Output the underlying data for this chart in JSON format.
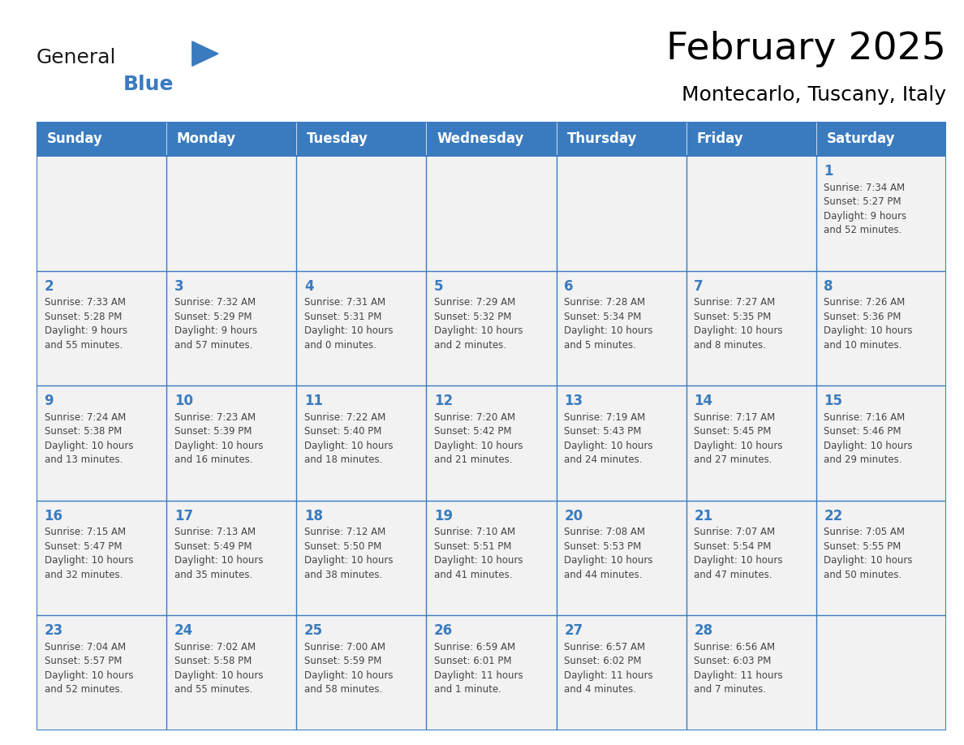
{
  "title": "February 2025",
  "subtitle": "Montecarlo, Tuscany, Italy",
  "header_bg_color": "#3A7BBF",
  "header_text_color": "#FFFFFF",
  "cell_bg_color": "#F2F2F2",
  "border_color": "#3A7BBF",
  "day_number_color": "#3A7BBF",
  "text_color": "#444444",
  "days_of_week": [
    "Sunday",
    "Monday",
    "Tuesday",
    "Wednesday",
    "Thursday",
    "Friday",
    "Saturday"
  ],
  "weeks": [
    [
      {
        "day": null,
        "info": null
      },
      {
        "day": null,
        "info": null
      },
      {
        "day": null,
        "info": null
      },
      {
        "day": null,
        "info": null
      },
      {
        "day": null,
        "info": null
      },
      {
        "day": null,
        "info": null
      },
      {
        "day": 1,
        "info": "Sunrise: 7:34 AM\nSunset: 5:27 PM\nDaylight: 9 hours\nand 52 minutes."
      }
    ],
    [
      {
        "day": 2,
        "info": "Sunrise: 7:33 AM\nSunset: 5:28 PM\nDaylight: 9 hours\nand 55 minutes."
      },
      {
        "day": 3,
        "info": "Sunrise: 7:32 AM\nSunset: 5:29 PM\nDaylight: 9 hours\nand 57 minutes."
      },
      {
        "day": 4,
        "info": "Sunrise: 7:31 AM\nSunset: 5:31 PM\nDaylight: 10 hours\nand 0 minutes."
      },
      {
        "day": 5,
        "info": "Sunrise: 7:29 AM\nSunset: 5:32 PM\nDaylight: 10 hours\nand 2 minutes."
      },
      {
        "day": 6,
        "info": "Sunrise: 7:28 AM\nSunset: 5:34 PM\nDaylight: 10 hours\nand 5 minutes."
      },
      {
        "day": 7,
        "info": "Sunrise: 7:27 AM\nSunset: 5:35 PM\nDaylight: 10 hours\nand 8 minutes."
      },
      {
        "day": 8,
        "info": "Sunrise: 7:26 AM\nSunset: 5:36 PM\nDaylight: 10 hours\nand 10 minutes."
      }
    ],
    [
      {
        "day": 9,
        "info": "Sunrise: 7:24 AM\nSunset: 5:38 PM\nDaylight: 10 hours\nand 13 minutes."
      },
      {
        "day": 10,
        "info": "Sunrise: 7:23 AM\nSunset: 5:39 PM\nDaylight: 10 hours\nand 16 minutes."
      },
      {
        "day": 11,
        "info": "Sunrise: 7:22 AM\nSunset: 5:40 PM\nDaylight: 10 hours\nand 18 minutes."
      },
      {
        "day": 12,
        "info": "Sunrise: 7:20 AM\nSunset: 5:42 PM\nDaylight: 10 hours\nand 21 minutes."
      },
      {
        "day": 13,
        "info": "Sunrise: 7:19 AM\nSunset: 5:43 PM\nDaylight: 10 hours\nand 24 minutes."
      },
      {
        "day": 14,
        "info": "Sunrise: 7:17 AM\nSunset: 5:45 PM\nDaylight: 10 hours\nand 27 minutes."
      },
      {
        "day": 15,
        "info": "Sunrise: 7:16 AM\nSunset: 5:46 PM\nDaylight: 10 hours\nand 29 minutes."
      }
    ],
    [
      {
        "day": 16,
        "info": "Sunrise: 7:15 AM\nSunset: 5:47 PM\nDaylight: 10 hours\nand 32 minutes."
      },
      {
        "day": 17,
        "info": "Sunrise: 7:13 AM\nSunset: 5:49 PM\nDaylight: 10 hours\nand 35 minutes."
      },
      {
        "day": 18,
        "info": "Sunrise: 7:12 AM\nSunset: 5:50 PM\nDaylight: 10 hours\nand 38 minutes."
      },
      {
        "day": 19,
        "info": "Sunrise: 7:10 AM\nSunset: 5:51 PM\nDaylight: 10 hours\nand 41 minutes."
      },
      {
        "day": 20,
        "info": "Sunrise: 7:08 AM\nSunset: 5:53 PM\nDaylight: 10 hours\nand 44 minutes."
      },
      {
        "day": 21,
        "info": "Sunrise: 7:07 AM\nSunset: 5:54 PM\nDaylight: 10 hours\nand 47 minutes."
      },
      {
        "day": 22,
        "info": "Sunrise: 7:05 AM\nSunset: 5:55 PM\nDaylight: 10 hours\nand 50 minutes."
      }
    ],
    [
      {
        "day": 23,
        "info": "Sunrise: 7:04 AM\nSunset: 5:57 PM\nDaylight: 10 hours\nand 52 minutes."
      },
      {
        "day": 24,
        "info": "Sunrise: 7:02 AM\nSunset: 5:58 PM\nDaylight: 10 hours\nand 55 minutes."
      },
      {
        "day": 25,
        "info": "Sunrise: 7:00 AM\nSunset: 5:59 PM\nDaylight: 10 hours\nand 58 minutes."
      },
      {
        "day": 26,
        "info": "Sunrise: 6:59 AM\nSunset: 6:01 PM\nDaylight: 11 hours\nand 1 minute."
      },
      {
        "day": 27,
        "info": "Sunrise: 6:57 AM\nSunset: 6:02 PM\nDaylight: 11 hours\nand 4 minutes."
      },
      {
        "day": 28,
        "info": "Sunrise: 6:56 AM\nSunset: 6:03 PM\nDaylight: 11 hours\nand 7 minutes."
      },
      {
        "day": null,
        "info": null
      }
    ]
  ],
  "logo_general_fontsize": 18,
  "logo_blue_fontsize": 18,
  "title_fontsize": 34,
  "subtitle_fontsize": 18,
  "header_fontsize": 12,
  "day_num_fontsize": 12,
  "info_fontsize": 8.5
}
